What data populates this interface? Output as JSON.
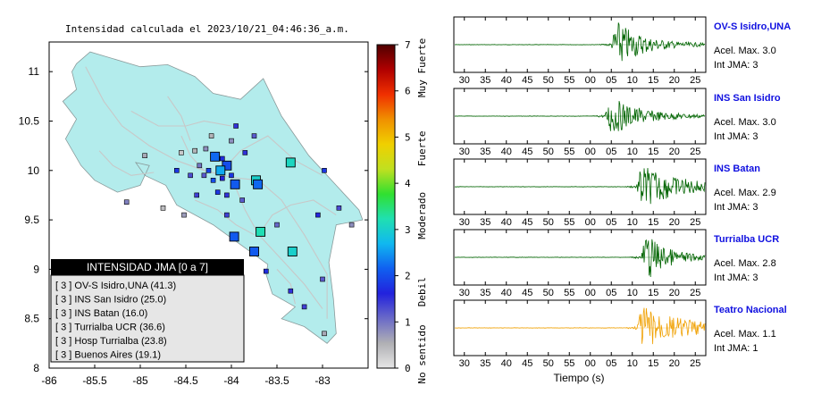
{
  "map": {
    "title": "Intensidad calculada el 2023/10/21_04:46:36_a.m.",
    "x_ticks": [
      "-86",
      "-85.5",
      "-85",
      "-84.5",
      "-84",
      "-83.5",
      "-83"
    ],
    "y_ticks": [
      "11",
      "10.5",
      "10",
      "9.5",
      "9",
      "8.5",
      "8"
    ],
    "xlim": [
      -86,
      -82.5
    ],
    "ylim": [
      8,
      11.3
    ],
    "land_color": "#b3ecec",
    "legend": {
      "title": "INTENSIDAD JMA [0 a 7]",
      "items": [
        "[ 3 ]  OV-S Isidro,UNA (41.3)",
        "[ 3 ]  INS San Isidro (25.0)",
        "[ 3 ]  INS Batan (16.0)",
        "[ 3 ]  Turrialba UCR (36.6)",
        "[ 3 ]  Hosp Turrialba (23.8)",
        "[ 3 ]  Buenos Aires (19.1)"
      ]
    },
    "stations": [
      {
        "lon": -84.18,
        "lat": 10.14,
        "i": 2.2,
        "big": true
      },
      {
        "lon": -84.05,
        "lat": 10.05,
        "i": 2.0,
        "big": true
      },
      {
        "lon": -84.12,
        "lat": 10.0,
        "i": 2.6,
        "big": true
      },
      {
        "lon": -83.96,
        "lat": 9.86,
        "i": 2.1,
        "big": true
      },
      {
        "lon": -83.73,
        "lat": 9.9,
        "i": 3.0,
        "big": true
      },
      {
        "lon": -83.71,
        "lat": 9.86,
        "i": 2.2,
        "big": true
      },
      {
        "lon": -83.35,
        "lat": 10.08,
        "i": 3.1,
        "big": true
      },
      {
        "lon": -83.68,
        "lat": 9.38,
        "i": 3.2,
        "big": true
      },
      {
        "lon": -83.97,
        "lat": 9.33,
        "i": 2.1,
        "big": true
      },
      {
        "lon": -83.75,
        "lat": 9.18,
        "i": 2.1,
        "big": true
      },
      {
        "lon": -83.33,
        "lat": 9.18,
        "i": 3.0,
        "big": true
      },
      {
        "lon": -84.25,
        "lat": 10.0,
        "i": 1.9
      },
      {
        "lon": -84.3,
        "lat": 9.95,
        "i": 1.2
      },
      {
        "lon": -84.2,
        "lat": 9.9,
        "i": 2.0
      },
      {
        "lon": -84.1,
        "lat": 9.92,
        "i": 1.6
      },
      {
        "lon": -84.0,
        "lat": 9.95,
        "i": 1.8
      },
      {
        "lon": -84.35,
        "lat": 10.05,
        "i": 1.0
      },
      {
        "lon": -84.4,
        "lat": 10.2,
        "i": 0.5
      },
      {
        "lon": -84.28,
        "lat": 10.22,
        "i": 0.8
      },
      {
        "lon": -84.22,
        "lat": 10.35,
        "i": 0.5
      },
      {
        "lon": -84.0,
        "lat": 10.3,
        "i": 0.8
      },
      {
        "lon": -83.85,
        "lat": 10.18,
        "i": 1.5
      },
      {
        "lon": -84.55,
        "lat": 10.18,
        "i": 0.3
      },
      {
        "lon": -84.6,
        "lat": 10.0,
        "i": 1.8
      },
      {
        "lon": -84.45,
        "lat": 9.95,
        "i": 1.3
      },
      {
        "lon": -84.15,
        "lat": 9.78,
        "i": 1.8
      },
      {
        "lon": -84.05,
        "lat": 9.75,
        "i": 1.5
      },
      {
        "lon": -83.88,
        "lat": 9.7,
        "i": 1.2
      },
      {
        "lon": -84.38,
        "lat": 9.75,
        "i": 1.4
      },
      {
        "lon": -84.05,
        "lat": 9.55,
        "i": 1.4
      },
      {
        "lon": -84.52,
        "lat": 9.55,
        "i": 0.7
      },
      {
        "lon": -84.75,
        "lat": 9.62,
        "i": 0.4
      },
      {
        "lon": -83.95,
        "lat": 10.45,
        "i": 1.5
      },
      {
        "lon": -83.75,
        "lat": 10.35,
        "i": 1.2
      },
      {
        "lon": -82.98,
        "lat": 10.0,
        "i": 1.8
      },
      {
        "lon": -82.82,
        "lat": 9.62,
        "i": 1.3
      },
      {
        "lon": -82.68,
        "lat": 9.45,
        "i": 0.8
      },
      {
        "lon": -83.05,
        "lat": 9.55,
        "i": 1.6
      },
      {
        "lon": -83.5,
        "lat": 9.45,
        "i": 1.1
      },
      {
        "lon": -83.62,
        "lat": 8.98,
        "i": 1.7
      },
      {
        "lon": -83.35,
        "lat": 8.78,
        "i": 1.5
      },
      {
        "lon": -83.2,
        "lat": 8.62,
        "i": 1.4
      },
      {
        "lon": -83.0,
        "lat": 8.9,
        "i": 1.2
      },
      {
        "lon": -82.98,
        "lat": 8.35,
        "i": 0.6
      },
      {
        "lon": -85.15,
        "lat": 9.68,
        "i": 0.9
      },
      {
        "lon": -84.95,
        "lat": 10.15,
        "i": 0.6
      },
      {
        "lon": -84.1,
        "lat": 10.12,
        "i": 1.7
      }
    ]
  },
  "colorbar": {
    "ticks": [
      "7",
      "6",
      "5",
      "4",
      "3",
      "2",
      "1",
      "0"
    ],
    "labels": [
      "Muy Fuerte",
      "Fuerte",
      "Moderado",
      "Debil",
      "No sentido"
    ],
    "colors": [
      "#e6e6e6",
      "#b0b0b4",
      "#6a6ac8",
      "#2222dd",
      "#1060f0",
      "#10b8f0",
      "#20e0b0",
      "#30e030",
      "#c0e020",
      "#f0d000",
      "#f09000",
      "#f03000",
      "#b00000",
      "#500000"
    ]
  },
  "waveforms": {
    "x_ticks": [
      "30",
      "35",
      "40",
      "45",
      "50",
      "55",
      "00",
      "05",
      "10",
      "15",
      "20",
      "25"
    ],
    "xlabel": "Tiempo (s)",
    "panels": [
      {
        "station": "OV-S Isidro,UNA",
        "accel": "Acel. Max. 3.0",
        "jma": "Int JMA: 3",
        "color": "#006400",
        "onset": 5,
        "peak": 1.0,
        "decay": 6
      },
      {
        "station": "INS San Isidro",
        "accel": "Acel. Max. 3.0",
        "jma": "Int JMA: 3",
        "color": "#006400",
        "onset": 3.5,
        "peak": 0.8,
        "decay": 7
      },
      {
        "station": "INS Batan",
        "accel": "Acel. Max. 2.9",
        "jma": "Int JMA: 3",
        "color": "#006400",
        "onset": 11,
        "peak": 0.9,
        "decay": 9
      },
      {
        "station": "Turrialba UCR",
        "accel": "Acel. Max. 2.8",
        "jma": "Int JMA: 3",
        "color": "#006400",
        "onset": 12,
        "peak": 1.0,
        "decay": 5
      },
      {
        "station": "Teatro Nacional",
        "accel": "Acel. Max. 1.1",
        "jma": "Int JMA: 1",
        "color": "#f0a000",
        "onset": 11,
        "peak": 0.9,
        "decay": 10
      }
    ]
  }
}
